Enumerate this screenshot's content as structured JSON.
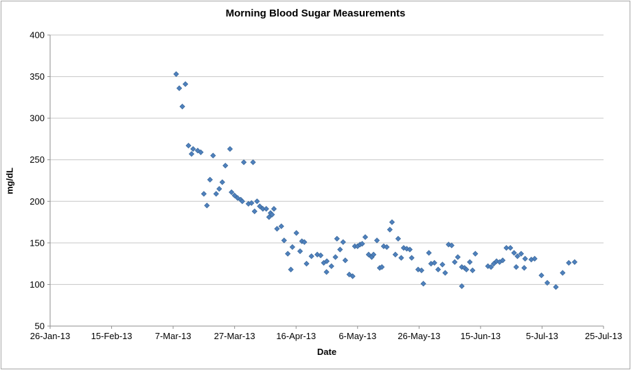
{
  "chart": {
    "title": "Morning Blood Sugar Measurements",
    "x_axis_title": "Date",
    "y_axis_title": "mg/dL"
  },
  "colors": {
    "background": "#ffffff",
    "marker_fill": "#4f81bd",
    "marker_edge": "#3a689b",
    "gridline": "#c6c6c6",
    "axis_line": "#8e8e8e",
    "chart_border": "#a6a6a6",
    "text": "#000000"
  },
  "chart_data": {
    "type": "scatter",
    "title": "Morning Blood Sugar Measurements",
    "xlabel": "Date",
    "ylabel": "mg/dL",
    "legend": "none",
    "grid": "horizontal",
    "marker": "diamond",
    "x_unit": "days after 26-Jan-13",
    "xlim_days": [
      0,
      180
    ],
    "ylim": [
      50,
      400
    ],
    "y_ticks": [
      50,
      100,
      150,
      200,
      250,
      300,
      350,
      400
    ],
    "x_ticks": [
      {
        "day": 0,
        "label": "26-Jan-13"
      },
      {
        "day": 20,
        "label": "15-Feb-13"
      },
      {
        "day": 40,
        "label": "7-Mar-13"
      },
      {
        "day": 60,
        "label": "27-Mar-13"
      },
      {
        "day": 80,
        "label": "16-Apr-13"
      },
      {
        "day": 100,
        "label": "6-May-13"
      },
      {
        "day": 120,
        "label": "26-May-13"
      },
      {
        "day": 140,
        "label": "15-Jun-13"
      },
      {
        "day": 160,
        "label": "5-Jul-13"
      },
      {
        "day": 180,
        "label": "25-Jul-13"
      }
    ],
    "points_format": [
      "day_after_26_Jan_13",
      "mg_dL"
    ],
    "points": [
      [
        41,
        353
      ],
      [
        42,
        336
      ],
      [
        43,
        314
      ],
      [
        44,
        341
      ],
      [
        45,
        267
      ],
      [
        46,
        257
      ],
      [
        46.5,
        263
      ],
      [
        48,
        261
      ],
      [
        49,
        259
      ],
      [
        50,
        209
      ],
      [
        51,
        195
      ],
      [
        52,
        226
      ],
      [
        53,
        255
      ],
      [
        54,
        209
      ],
      [
        55,
        215
      ],
      [
        56,
        223
      ],
      [
        57,
        243
      ],
      [
        58.5,
        263
      ],
      [
        59,
        211
      ],
      [
        60,
        207
      ],
      [
        61,
        204
      ],
      [
        62,
        202
      ],
      [
        62.5,
        200
      ],
      [
        63,
        247
      ],
      [
        64.5,
        197
      ],
      [
        65.5,
        198
      ],
      [
        66,
        247
      ],
      [
        66.5,
        188
      ],
      [
        67.3,
        200
      ],
      [
        68.2,
        194
      ],
      [
        69.2,
        191
      ],
      [
        70.3,
        191
      ],
      [
        71.2,
        181
      ],
      [
        71.7,
        186
      ],
      [
        72.2,
        184
      ],
      [
        72.8,
        191
      ],
      [
        73.8,
        167
      ],
      [
        75.2,
        170
      ],
      [
        76.1,
        153
      ],
      [
        77.3,
        137
      ],
      [
        78.3,
        118
      ],
      [
        78.8,
        145
      ],
      [
        80.1,
        162
      ],
      [
        81.3,
        140
      ],
      [
        81.9,
        152
      ],
      [
        82.7,
        151
      ],
      [
        83.4,
        125
      ],
      [
        85,
        134
      ],
      [
        86.9,
        136
      ],
      [
        88,
        135
      ],
      [
        89,
        126
      ],
      [
        90,
        128
      ],
      [
        89.9,
        115
      ],
      [
        91.5,
        122
      ],
      [
        92.8,
        133
      ],
      [
        93.3,
        155
      ],
      [
        95.3,
        151
      ],
      [
        94.3,
        142
      ],
      [
        96,
        129
      ],
      [
        97.3,
        112
      ],
      [
        98.4,
        110
      ],
      [
        99.1,
        146
      ],
      [
        100,
        146
      ],
      [
        100.8,
        148
      ],
      [
        101.5,
        149
      ],
      [
        102.5,
        157
      ],
      [
        103.6,
        136
      ],
      [
        104.6,
        133
      ],
      [
        105.2,
        136
      ],
      [
        106.3,
        153
      ],
      [
        107.2,
        120
      ],
      [
        107.9,
        121
      ],
      [
        108.5,
        146
      ],
      [
        109.5,
        145
      ],
      [
        110.5,
        166
      ],
      [
        111.2,
        175
      ],
      [
        112.3,
        136
      ],
      [
        113.2,
        155
      ],
      [
        114.2,
        132
      ],
      [
        115,
        144
      ],
      [
        116,
        143
      ],
      [
        117,
        142
      ],
      [
        117.6,
        132
      ],
      [
        119.7,
        118
      ],
      [
        120.8,
        117
      ],
      [
        121.4,
        101
      ],
      [
        123.2,
        138
      ],
      [
        123.9,
        125
      ],
      [
        125,
        126
      ],
      [
        126.2,
        118
      ],
      [
        127.6,
        124
      ],
      [
        128.5,
        114
      ],
      [
        129.6,
        148
      ],
      [
        130.6,
        147
      ],
      [
        131.6,
        127
      ],
      [
        132.6,
        133
      ],
      [
        133.9,
        98
      ],
      [
        133.9,
        121
      ],
      [
        134.8,
        120
      ],
      [
        135.4,
        118
      ],
      [
        136.5,
        127
      ],
      [
        137.4,
        117
      ],
      [
        138.3,
        137
      ],
      [
        142.4,
        122
      ],
      [
        143.4,
        121
      ],
      [
        144.3,
        125
      ],
      [
        145.2,
        128
      ],
      [
        146.2,
        127
      ],
      [
        147.2,
        129
      ],
      [
        148.4,
        144
      ],
      [
        149.7,
        144
      ],
      [
        150.9,
        138
      ],
      [
        151.6,
        121
      ],
      [
        152,
        134
      ],
      [
        153.2,
        137
      ],
      [
        154.2,
        120
      ],
      [
        154.5,
        131
      ],
      [
        156.5,
        130
      ],
      [
        157.6,
        131
      ],
      [
        159.8,
        111
      ],
      [
        161.7,
        102
      ],
      [
        164.5,
        97
      ],
      [
        166.7,
        114
      ],
      [
        168.7,
        126
      ],
      [
        170.6,
        127
      ]
    ]
  }
}
